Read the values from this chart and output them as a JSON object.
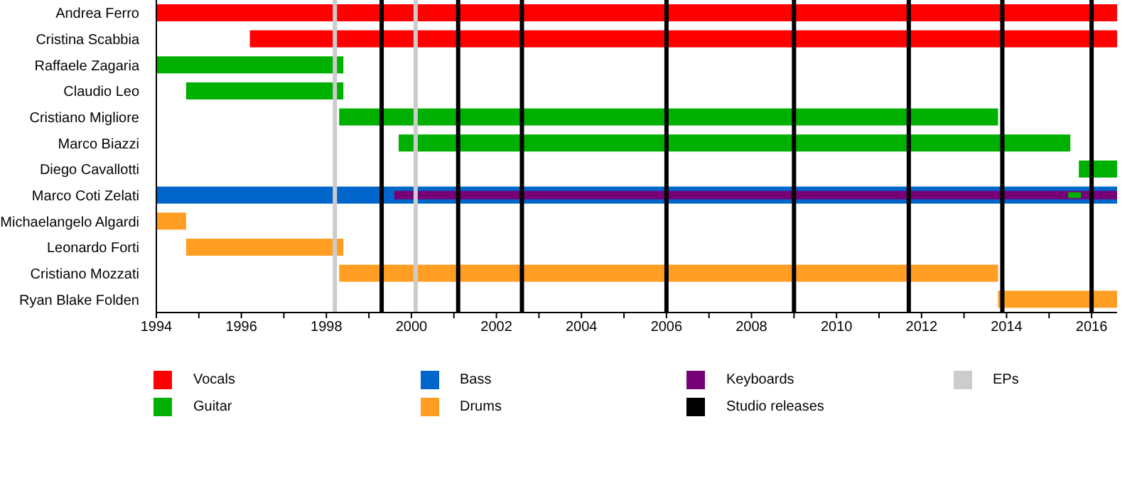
{
  "chart_data": {
    "type": "bar",
    "orientation": "horizontal",
    "legend": "bottom",
    "categories": [
      "Andrea Ferro",
      "Cristina Scabbia",
      "Raffaele Zagaria",
      "Claudio Leo",
      "Cristiano Migliore",
      "Marco Biazzi",
      "Diego Cavallotti",
      "Marco Coti Zelati",
      "Michaelangelo Algardi",
      "Leonardo Forti",
      "Cristiano Mozzati",
      "Ryan Blake Folden"
    ],
    "xlim": [
      1994,
      2016.6
    ],
    "xticks": [
      1994,
      {
        "value": 1995,
        "label": null
      },
      1996,
      {
        "value": 1997,
        "label": null
      },
      1998,
      {
        "value": 1999,
        "label": null
      },
      2000,
      {
        "value": 2001,
        "label": null
      },
      2002,
      {
        "value": 2003,
        "label": null
      },
      2004,
      {
        "value": 2005,
        "label": null
      },
      2006,
      {
        "value": 2007,
        "label": null
      },
      2008,
      {
        "value": 2009,
        "label": null
      },
      2010,
      {
        "value": 2011,
        "label": null
      },
      2012,
      {
        "value": 2013,
        "label": null
      },
      2014,
      {
        "value": 2015,
        "label": null
      },
      2016
    ],
    "series": [
      {
        "name": "Vocals",
        "color": "#ff0000",
        "values": [
          22.6,
          20.4,
          null,
          null,
          null,
          null,
          null,
          null,
          null,
          null,
          null,
          null
        ],
        "base": [
          1994,
          1996.2,
          null,
          null,
          null,
          null,
          null,
          null,
          null,
          null,
          null,
          null
        ]
      },
      {
        "name": "Guitar",
        "color": "#00b000",
        "values": [
          null,
          null,
          4.4,
          3.7,
          15.5,
          15.8,
          0.9,
          0.3,
          null,
          null,
          null,
          null
        ],
        "base": [
          null,
          null,
          1994,
          1994.7,
          1998.3,
          1999.7,
          2015.7,
          2015.45,
          null,
          null,
          null,
          null
        ]
      },
      {
        "name": "Bass",
        "color": "#0066cc",
        "values": [
          null,
          null,
          null,
          null,
          null,
          null,
          null,
          22.6,
          null,
          null,
          null,
          null
        ],
        "base": [
          null,
          null,
          null,
          null,
          null,
          null,
          null,
          1994,
          null,
          null,
          null,
          null
        ]
      },
      {
        "name": "Drums",
        "color": "#ff9e22",
        "values": [
          null,
          null,
          null,
          null,
          null,
          null,
          null,
          null,
          0.7,
          3.7,
          15.5,
          2.8
        ],
        "base": [
          null,
          null,
          null,
          null,
          null,
          null,
          null,
          null,
          1994,
          1994.7,
          1998.3,
          2013.8
        ]
      },
      {
        "name": "Keyboards",
        "color": "#770077",
        "values": [
          null,
          null,
          null,
          null,
          null,
          null,
          null,
          17.0,
          null,
          null,
          null,
          null
        ],
        "base": [
          null,
          null,
          null,
          null,
          null,
          null,
          null,
          1999.6,
          null,
          null,
          null,
          null
        ]
      }
    ],
    "ref_lines": [
      {
        "axis": "x",
        "value": 1999.3,
        "label": "Studio releases",
        "color": "#000000"
      },
      {
        "axis": "x",
        "value": 2001.1,
        "color": "#000000"
      },
      {
        "axis": "x",
        "value": 2002.6,
        "color": "#000000"
      },
      {
        "axis": "x",
        "value": 2006.0,
        "color": "#000000"
      },
      {
        "axis": "x",
        "value": 2009.0,
        "color": "#000000"
      },
      {
        "axis": "x",
        "value": 2011.7,
        "color": "#000000"
      },
      {
        "axis": "x",
        "value": 2013.9,
        "color": "#000000"
      },
      {
        "axis": "x",
        "value": 2016.0,
        "color": "#000000"
      },
      {
        "axis": "x",
        "value": 1998.2,
        "label": "EPs",
        "color": "#cccccc"
      },
      {
        "axis": "x",
        "value": 2000.1,
        "color": "#cccccc"
      }
    ]
  }
}
